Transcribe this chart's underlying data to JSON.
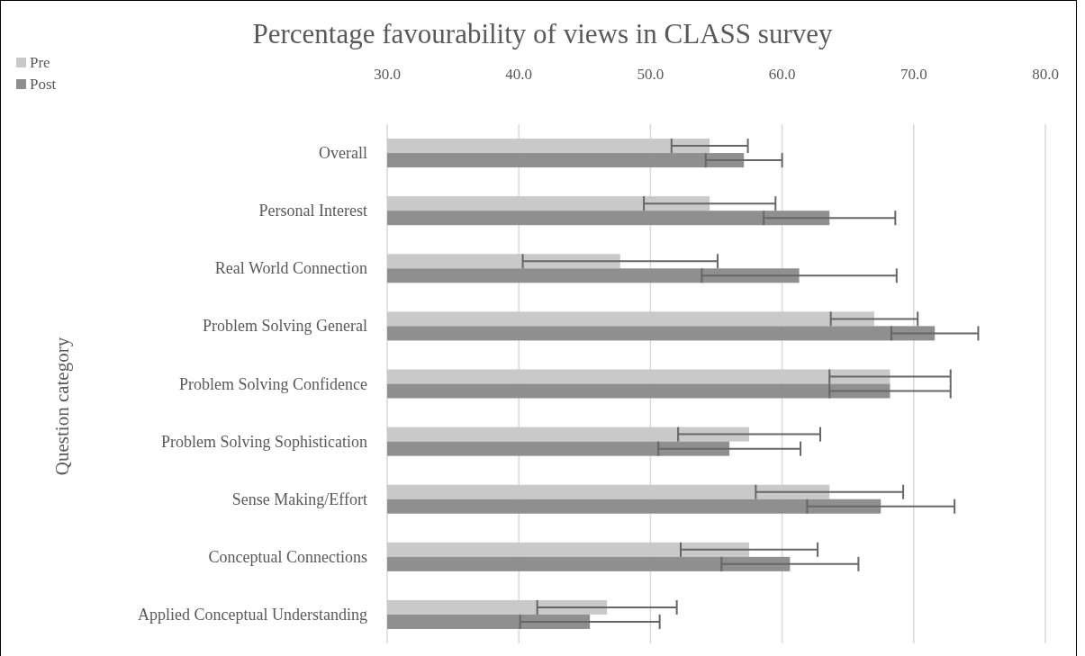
{
  "chart_data": {
    "type": "bar",
    "orientation": "horizontal",
    "title": "Percentage favourability of views in CLASS survey",
    "ylabel": "Question category",
    "categories": [
      "Overall",
      "Personal Interest",
      "Real World Connection",
      "Problem Solving General",
      "Problem Solving Confidence ",
      "Problem Solving Sophistication",
      "Sense Making/Effort",
      "Conceptual Connections",
      "Applied Conceptual Understanding"
    ],
    "series": [
      {
        "name": "Pre",
        "color": "#c9c9c9",
        "values": [
          54.5,
          54.5,
          47.7,
          67.0,
          68.2,
          57.5,
          63.6,
          57.5,
          46.7
        ],
        "errors": [
          2.9,
          5.0,
          7.4,
          3.3,
          4.6,
          5.4,
          5.6,
          5.2,
          5.3
        ]
      },
      {
        "name": "Post",
        "color": "#8f8f8f",
        "values": [
          57.1,
          63.6,
          61.3,
          71.6,
          68.2,
          56.0,
          67.5,
          60.6,
          45.4
        ],
        "errors": [
          2.9,
          5.0,
          7.4,
          3.3,
          4.6,
          5.4,
          5.6,
          5.2,
          5.3
        ]
      }
    ],
    "xlim": [
      30,
      80
    ],
    "xticks": [
      {
        "value": 30,
        "label": "30.0"
      },
      {
        "value": 40,
        "label": "40.0"
      },
      {
        "value": 50,
        "label": "50.0"
      },
      {
        "value": 60,
        "label": "60.0"
      },
      {
        "value": 70,
        "label": "70.0"
      },
      {
        "value": 80,
        "label": "80.0"
      }
    ],
    "grid": "x",
    "legend": "top left"
  }
}
